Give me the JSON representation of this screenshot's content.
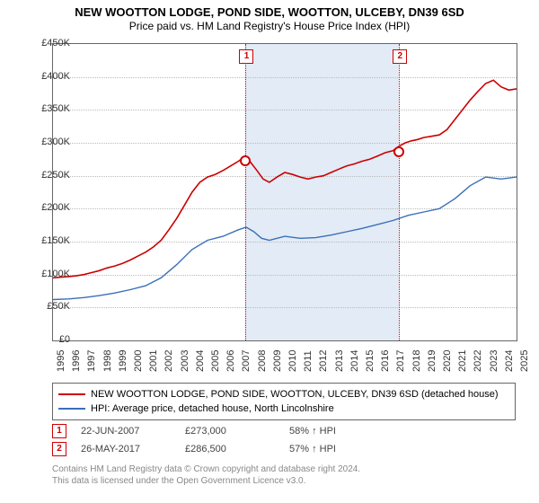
{
  "title": {
    "main": "NEW WOOTTON LODGE, POND SIDE, WOOTTON, ULCEBY, DN39 6SD",
    "sub": "Price paid vs. HM Land Registry's House Price Index (HPI)",
    "main_fontsize": 13,
    "sub_fontsize": 12
  },
  "chart": {
    "type": "line",
    "background_color": "#ffffff",
    "border_color": "#666666",
    "grid_color": "#bbbbbb",
    "shade_color": "#dde8f5",
    "x_years": [
      1995,
      1996,
      1997,
      1998,
      1999,
      2000,
      2001,
      2002,
      2003,
      2004,
      2005,
      2006,
      2007,
      2008,
      2009,
      2010,
      2011,
      2012,
      2013,
      2014,
      2015,
      2016,
      2017,
      2018,
      2019,
      2020,
      2021,
      2022,
      2023,
      2024,
      2025
    ],
    "x_min": 1995,
    "x_max": 2025,
    "y_ticks": [
      0,
      50000,
      100000,
      150000,
      200000,
      250000,
      300000,
      350000,
      400000,
      450000
    ],
    "y_tick_labels": [
      "£0",
      "£50K",
      "£100K",
      "£150K",
      "£200K",
      "£250K",
      "£300K",
      "£350K",
      "£400K",
      "£450K"
    ],
    "y_min": 0,
    "y_max": 450000,
    "tick_fontsize": 11,
    "series": [
      {
        "name": "property_price",
        "label": "NEW WOOTTON LODGE, POND SIDE, WOOTTON, ULCEBY, DN39 6SD (detached house)",
        "color": "#cc0000",
        "line_width": 1.6,
        "data": [
          [
            1995.0,
            95000
          ],
          [
            1995.5,
            96000
          ],
          [
            1996.0,
            97000
          ],
          [
            1996.5,
            98000
          ],
          [
            1997.0,
            100000
          ],
          [
            1997.5,
            103000
          ],
          [
            1998.0,
            106000
          ],
          [
            1998.5,
            110000
          ],
          [
            1999.0,
            113000
          ],
          [
            1999.5,
            117000
          ],
          [
            2000.0,
            122000
          ],
          [
            2000.5,
            128000
          ],
          [
            2001.0,
            134000
          ],
          [
            2001.5,
            142000
          ],
          [
            2002.0,
            152000
          ],
          [
            2002.5,
            168000
          ],
          [
            2003.0,
            185000
          ],
          [
            2003.5,
            205000
          ],
          [
            2004.0,
            225000
          ],
          [
            2004.5,
            240000
          ],
          [
            2005.0,
            248000
          ],
          [
            2005.5,
            252000
          ],
          [
            2006.0,
            258000
          ],
          [
            2006.5,
            265000
          ],
          [
            2007.0,
            272000
          ],
          [
            2007.46,
            280000
          ],
          [
            2007.8,
            270000
          ],
          [
            2008.2,
            258000
          ],
          [
            2008.6,
            245000
          ],
          [
            2009.0,
            240000
          ],
          [
            2009.5,
            248000
          ],
          [
            2010.0,
            255000
          ],
          [
            2010.5,
            252000
          ],
          [
            2011.0,
            248000
          ],
          [
            2011.5,
            245000
          ],
          [
            2012.0,
            248000
          ],
          [
            2012.5,
            250000
          ],
          [
            2013.0,
            255000
          ],
          [
            2013.5,
            260000
          ],
          [
            2014.0,
            265000
          ],
          [
            2014.5,
            268000
          ],
          [
            2015.0,
            272000
          ],
          [
            2015.5,
            275000
          ],
          [
            2016.0,
            280000
          ],
          [
            2016.5,
            285000
          ],
          [
            2017.0,
            288000
          ],
          [
            2017.4,
            295000
          ],
          [
            2017.8,
            300000
          ],
          [
            2018.2,
            303000
          ],
          [
            2018.6,
            305000
          ],
          [
            2019.0,
            308000
          ],
          [
            2019.5,
            310000
          ],
          [
            2020.0,
            312000
          ],
          [
            2020.5,
            320000
          ],
          [
            2021.0,
            335000
          ],
          [
            2021.5,
            350000
          ],
          [
            2022.0,
            365000
          ],
          [
            2022.5,
            378000
          ],
          [
            2023.0,
            390000
          ],
          [
            2023.5,
            395000
          ],
          [
            2024.0,
            385000
          ],
          [
            2024.5,
            380000
          ],
          [
            2025.0,
            382000
          ]
        ]
      },
      {
        "name": "hpi_north_lincs",
        "label": "HPI: Average price, detached house, North Lincolnshire",
        "color": "#3b6fb6",
        "line_width": 1.4,
        "data": [
          [
            1995.0,
            62000
          ],
          [
            1996.0,
            63000
          ],
          [
            1997.0,
            65000
          ],
          [
            1998.0,
            68000
          ],
          [
            1999.0,
            72000
          ],
          [
            2000.0,
            77000
          ],
          [
            2001.0,
            83000
          ],
          [
            2002.0,
            95000
          ],
          [
            2003.0,
            115000
          ],
          [
            2004.0,
            138000
          ],
          [
            2005.0,
            152000
          ],
          [
            2006.0,
            158000
          ],
          [
            2007.0,
            168000
          ],
          [
            2007.5,
            172000
          ],
          [
            2008.0,
            165000
          ],
          [
            2008.5,
            155000
          ],
          [
            2009.0,
            152000
          ],
          [
            2010.0,
            158000
          ],
          [
            2011.0,
            155000
          ],
          [
            2012.0,
            156000
          ],
          [
            2013.0,
            160000
          ],
          [
            2014.0,
            165000
          ],
          [
            2015.0,
            170000
          ],
          [
            2016.0,
            176000
          ],
          [
            2017.0,
            182000
          ],
          [
            2018.0,
            190000
          ],
          [
            2019.0,
            195000
          ],
          [
            2020.0,
            200000
          ],
          [
            2021.0,
            215000
          ],
          [
            2022.0,
            235000
          ],
          [
            2023.0,
            248000
          ],
          [
            2024.0,
            245000
          ],
          [
            2025.0,
            248000
          ]
        ]
      }
    ],
    "sale_markers": [
      {
        "n": "1",
        "year": 2007.47,
        "price": 273000
      },
      {
        "n": "2",
        "year": 2017.4,
        "price": 286500
      }
    ],
    "shade_region": {
      "from_year": 2007.47,
      "to_year": 2017.4
    }
  },
  "legend": {
    "border_color": "#666666",
    "fontsize": 11
  },
  "sales": [
    {
      "n": "1",
      "date": "22-JUN-2007",
      "price": "£273,000",
      "hpi": "58% ↑ HPI"
    },
    {
      "n": "2",
      "date": "26-MAY-2017",
      "price": "£286,500",
      "hpi": "57% ↑ HPI"
    }
  ],
  "footer": {
    "line1": "Contains HM Land Registry data © Crown copyright and database right 2024.",
    "line2": "This data is licensed under the Open Government Licence v3.0.",
    "color": "#888888",
    "fontsize": 10
  }
}
